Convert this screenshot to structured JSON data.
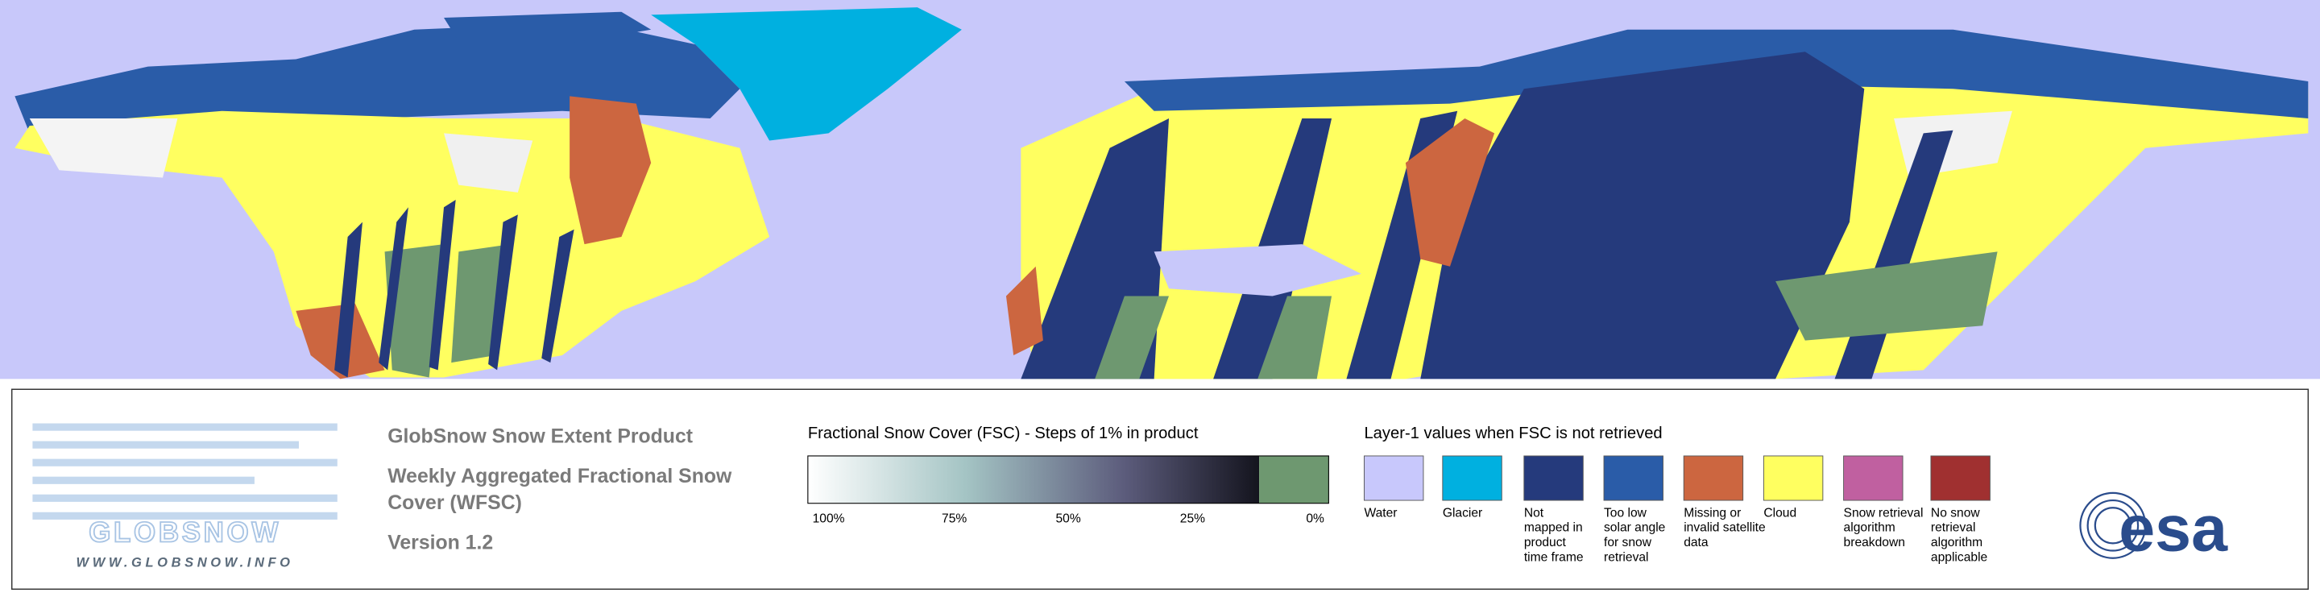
{
  "logo": {
    "name": "GLOBSNOW",
    "url": "WWW.GLOBSNOW.INFO"
  },
  "header": {
    "title": "GlobSnow Snow Extent Product",
    "subtitle_lines": [
      "Weekly Aggregated Fractional Snow",
      "Cover (WFSC)"
    ],
    "version": "Version 1.2"
  },
  "colorbar": {
    "title": "Fractional Snow Cover (FSC) - Steps of 1% in product",
    "ticks": [
      "100%",
      "75%",
      "50%",
      "25%",
      "0%"
    ]
  },
  "legend": {
    "title": "Layer-1 values when FSC is not retrieved",
    "items": [
      {
        "color": "#c8c8fc",
        "lines": [
          "Water"
        ]
      },
      {
        "color": "#00b0e0",
        "lines": [
          "Glacier"
        ]
      },
      {
        "color": "#253a7c",
        "lines": [
          "Not",
          "mapped in",
          "product",
          "time frame"
        ]
      },
      {
        "color": "#2a5ca8",
        "lines": [
          "Too low",
          "solar angle",
          "for snow",
          "retrieval"
        ]
      },
      {
        "color": "#cc6640",
        "lines": [
          "Missing or",
          "invalid satellite",
          "data"
        ]
      },
      {
        "color": "#ffff60",
        "lines": [
          "Cloud"
        ]
      },
      {
        "color": "#c060a0",
        "lines": [
          "Snow retrieval",
          "algorithm",
          "breakdown"
        ]
      },
      {
        "color": "#a03030",
        "lines": [
          "No snow",
          "retrieval",
          "algorithm",
          "applicable"
        ]
      }
    ]
  },
  "esa": "esa"
}
